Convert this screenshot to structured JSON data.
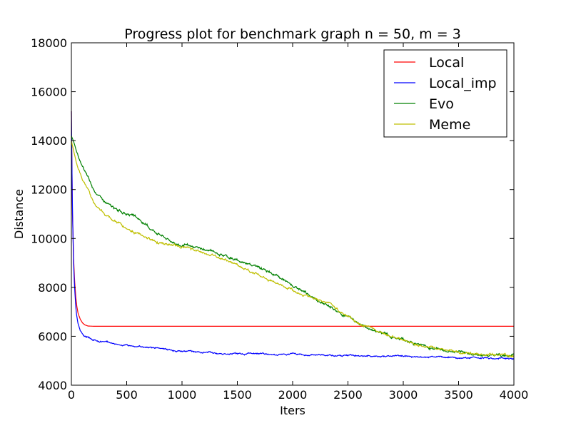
{
  "chart_data": {
    "type": "line",
    "title": "Progress plot for benchmark graph n = 50, m = 3",
    "xlabel": "Iters",
    "ylabel": "Distance",
    "xlim": [
      0,
      4000
    ],
    "ylim": [
      4000,
      18000
    ],
    "xticks": [
      "0",
      "500",
      "1000",
      "1500",
      "2000",
      "2500",
      "3000",
      "3500",
      "4000"
    ],
    "yticks": [
      "4000",
      "6000",
      "8000",
      "10000",
      "12000",
      "14000",
      "16000",
      "18000"
    ],
    "grid": false,
    "legend_position": "top-right",
    "series": [
      {
        "name": "Local",
        "color": "#ff0000",
        "x": [
          0,
          10,
          20,
          30,
          40,
          50,
          60,
          80,
          100,
          120,
          150,
          200,
          300,
          500,
          1000,
          2000,
          3000,
          4000
        ],
        "y": [
          15200,
          11000,
          9200,
          8200,
          7600,
          7200,
          6950,
          6700,
          6550,
          6470,
          6420,
          6410,
          6410,
          6410,
          6410,
          6410,
          6410,
          6410
        ]
      },
      {
        "name": "Local_imp",
        "color": "#0000ff",
        "x": [
          0,
          10,
          20,
          30,
          40,
          50,
          60,
          80,
          100,
          120,
          150,
          200,
          250,
          300,
          400,
          500,
          600,
          700,
          800,
          900,
          1000,
          1200,
          1400,
          1600,
          1800,
          2000,
          2200,
          2400,
          2600,
          2800,
          3000,
          3200,
          3400,
          3600,
          3800,
          4000
        ],
        "y": [
          15200,
          11000,
          9000,
          7900,
          7200,
          6800,
          6500,
          6250,
          6100,
          6000,
          5950,
          5850,
          5800,
          5780,
          5700,
          5620,
          5580,
          5550,
          5500,
          5450,
          5400,
          5340,
          5300,
          5280,
          5260,
          5260,
          5220,
          5200,
          5200,
          5180,
          5180,
          5150,
          5130,
          5120,
          5100,
          5100
        ]
      },
      {
        "name": "Evo",
        "color": "#008000",
        "x": [
          0,
          25,
          50,
          100,
          150,
          200,
          300,
          400,
          500,
          600,
          700,
          800,
          900,
          1000,
          1100,
          1200,
          1300,
          1400,
          1500,
          1600,
          1700,
          1800,
          1900,
          2000,
          2100,
          2200,
          2300,
          2400,
          2500,
          2600,
          2700,
          2800,
          2900,
          3000,
          3100,
          3200,
          3300,
          3400,
          3500,
          3600,
          3700,
          3800,
          3900,
          4000
        ],
        "y": [
          14200,
          13900,
          13500,
          12900,
          12500,
          12000,
          11500,
          11200,
          11000,
          10800,
          10450,
          10200,
          9900,
          9700,
          9650,
          9550,
          9450,
          9300,
          9100,
          9000,
          8800,
          8600,
          8350,
          8050,
          7800,
          7550,
          7300,
          7050,
          6800,
          6550,
          6300,
          6150,
          6000,
          5850,
          5700,
          5600,
          5500,
          5400,
          5350,
          5300,
          5250,
          5220,
          5210,
          5200
        ]
      },
      {
        "name": "Meme",
        "color": "#bfbf00",
        "x": [
          0,
          25,
          50,
          100,
          150,
          200,
          300,
          400,
          500,
          600,
          700,
          800,
          900,
          1000,
          1100,
          1200,
          1300,
          1400,
          1500,
          1600,
          1700,
          1800,
          1900,
          2000,
          2100,
          2200,
          2300,
          2400,
          2500,
          2600,
          2700,
          2800,
          2900,
          3000,
          3100,
          3200,
          3300,
          3400,
          3500,
          3600,
          3700,
          3800,
          3900,
          4000
        ],
        "y": [
          14000,
          13500,
          13000,
          12400,
          12000,
          11500,
          11000,
          10700,
          10400,
          10200,
          10000,
          9850,
          9700,
          9650,
          9550,
          9400,
          9300,
          9100,
          8900,
          8700,
          8500,
          8300,
          8100,
          7900,
          7700,
          7550,
          7400,
          7100,
          6800,
          6550,
          6350,
          6150,
          6000,
          5850,
          5700,
          5600,
          5500,
          5420,
          5350,
          5300,
          5250,
          5220,
          5210,
          5200
        ]
      }
    ]
  }
}
